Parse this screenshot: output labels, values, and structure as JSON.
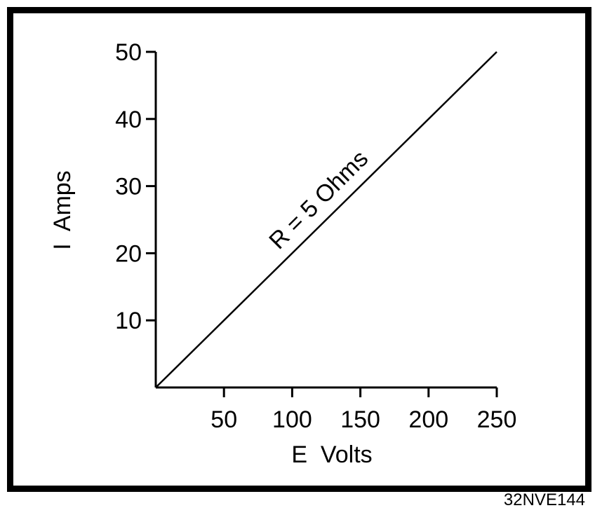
{
  "chart_data": {
    "type": "line",
    "title": "",
    "xlabel": "E  Volts",
    "ylabel": "I  Amps",
    "xlim": [
      0,
      250
    ],
    "ylim": [
      0,
      50
    ],
    "x_ticks": [
      50,
      100,
      150,
      200,
      250
    ],
    "y_ticks": [
      10,
      20,
      30,
      40,
      50
    ],
    "grid": false,
    "series": [
      {
        "name": "R = 5 Ohms",
        "x": [
          0,
          250
        ],
        "y": [
          0,
          50
        ]
      }
    ],
    "annotations": [
      "R = 5 Ohms"
    ],
    "colors": {
      "line": "#000000",
      "axis": "#000000",
      "frame": "#000000"
    }
  },
  "figure_id": "32NVE144"
}
